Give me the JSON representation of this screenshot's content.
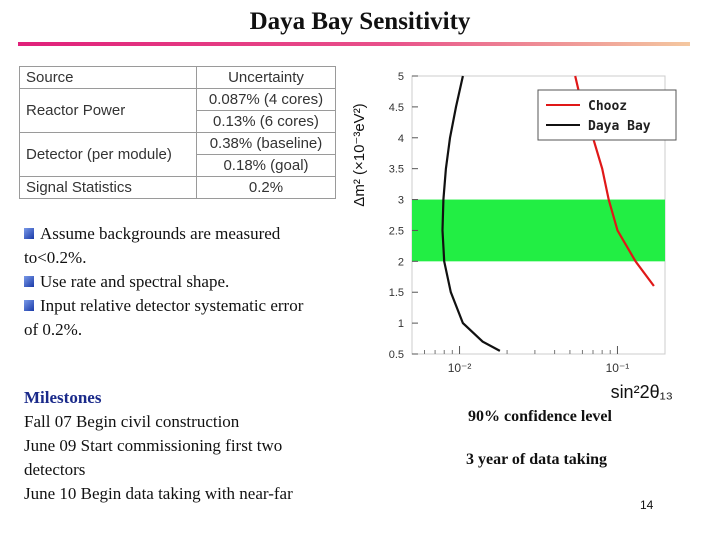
{
  "title": "Daya Bay Sensitivity",
  "table": {
    "header": [
      "Source",
      "Uncertainty"
    ],
    "rows": [
      {
        "source": "Reactor Power",
        "value": "0.087% (4 cores)"
      },
      {
        "source": "",
        "value": "0.13% (6 cores)"
      },
      {
        "source": "Detector (per module)",
        "value": "0.38% (baseline)"
      },
      {
        "source": "",
        "value": "0.18% (goal)"
      },
      {
        "source": "Signal Statistics",
        "value": "0.2%"
      }
    ]
  },
  "bullets": [
    {
      "line1": "Assume backgrounds are measured",
      "line2": "to<0.2%."
    },
    {
      "line1": "Use rate and spectral shape.",
      "line2": ""
    },
    {
      "line1": "Input relative detector systematic error",
      "line2": "of 0.2%."
    }
  ],
  "milestones": {
    "heading": "Milestones",
    "items": [
      "Fall 07 Begin civil construction",
      "June 09  Start commissioning first two",
      "detectors",
      "June 10  Begin data taking with near-far"
    ]
  },
  "notes": {
    "confidence": "90% confidence level",
    "duration": "3 year of data taking"
  },
  "page_number": "14",
  "chart_data": {
    "type": "line",
    "xlabel": "sin²2θ₁₃",
    "ylabel": "Δm² (×10⁻³eV²)",
    "x_scale": "log",
    "x_tick_labels": [
      "10⁻²",
      "10⁻¹"
    ],
    "y_ticks": [
      0.5,
      1,
      1.5,
      2,
      2.5,
      3,
      3.5,
      4,
      4.5,
      5
    ],
    "ylim": [
      0.5,
      5
    ],
    "band": {
      "y_range": [
        2.0,
        3.0
      ],
      "color": "#22ee44"
    },
    "legend": {
      "position": "top-right"
    },
    "series": [
      {
        "name": "Chooz",
        "color": "#e01818",
        "points": [
          [
            0.054,
            5.0
          ],
          [
            0.06,
            4.5
          ],
          [
            0.07,
            4.0
          ],
          [
            0.08,
            3.5
          ],
          [
            0.088,
            3.0
          ],
          [
            0.1,
            2.5
          ],
          [
            0.13,
            2.0
          ],
          [
            0.17,
            1.6
          ]
        ]
      },
      {
        "name": "Daya Bay",
        "color": "#111111",
        "points": [
          [
            0.0105,
            5.0
          ],
          [
            0.0095,
            4.5
          ],
          [
            0.0087,
            4.0
          ],
          [
            0.0082,
            3.5
          ],
          [
            0.0079,
            3.0
          ],
          [
            0.0078,
            2.5
          ],
          [
            0.008,
            2.0
          ],
          [
            0.0088,
            1.5
          ],
          [
            0.0105,
            1.0
          ],
          [
            0.014,
            0.7
          ],
          [
            0.018,
            0.55
          ]
        ]
      }
    ]
  }
}
